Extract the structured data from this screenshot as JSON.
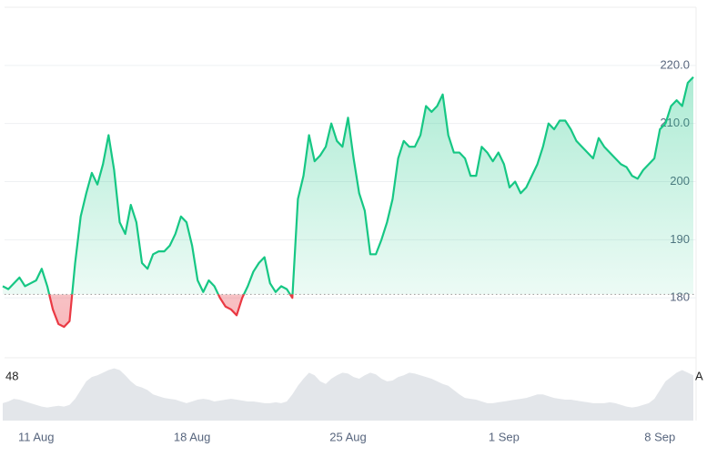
{
  "chart_data": [
    {
      "type": "line",
      "categories": [
        null,
        null,
        null,
        null,
        null,
        null,
        "11 Aug",
        null,
        null,
        null,
        null,
        null,
        null,
        null,
        null,
        null,
        null,
        null,
        null,
        null,
        null,
        null,
        null,
        null,
        null,
        null,
        null,
        null,
        null,
        null,
        null,
        null,
        null,
        null,
        "18 Aug",
        null,
        null,
        null,
        null,
        null,
        null,
        null,
        null,
        null,
        null,
        null,
        null,
        null,
        null,
        null,
        null,
        null,
        null,
        null,
        null,
        null,
        null,
        null,
        null,
        null,
        null,
        null,
        "25 Aug",
        null,
        null,
        null,
        null,
        null,
        null,
        null,
        null,
        null,
        null,
        null,
        null,
        null,
        null,
        null,
        null,
        null,
        null,
        null,
        null,
        null,
        null,
        null,
        null,
        null,
        null,
        null,
        "1 Sep",
        null,
        null,
        null,
        null,
        null,
        null,
        null,
        null,
        null,
        null,
        null,
        null,
        null,
        null,
        null,
        null,
        null,
        null,
        null,
        null,
        null,
        null,
        null,
        null,
        null,
        null,
        null,
        "8 Sep",
        null,
        null,
        null,
        null,
        null,
        null
      ],
      "values": [
        182,
        181.5,
        182.5,
        183.5,
        182,
        182.5,
        183,
        185,
        182,
        178,
        175.5,
        175,
        176,
        186,
        194,
        198,
        201.5,
        199.5,
        203,
        208,
        202,
        193,
        191,
        196,
        193,
        186,
        185,
        187.5,
        188,
        188,
        189,
        191,
        194,
        193,
        189,
        183,
        181,
        183,
        182,
        180,
        178.5,
        178,
        177,
        180,
        182,
        184.5,
        186,
        187,
        182.5,
        181,
        182,
        181.5,
        180,
        197,
        201,
        208,
        203.5,
        204.5,
        206,
        210,
        207,
        206,
        211,
        204,
        198,
        195,
        187.5,
        187.5,
        190,
        193,
        197,
        204,
        207,
        206,
        206,
        208,
        213,
        212,
        213,
        215,
        208,
        205,
        205,
        204,
        201,
        201,
        206,
        205,
        203.5,
        205,
        203,
        199,
        200,
        198,
        199,
        201,
        203,
        206,
        210,
        209,
        210.5,
        210.5,
        209,
        207,
        206,
        205,
        204,
        207.5,
        206,
        205,
        204,
        203,
        202.5,
        201,
        200.5,
        202,
        203,
        204,
        209,
        210,
        213,
        214,
        213,
        217,
        218
      ],
      "color": "#16c784",
      "negative_color": "#ea3943",
      "reference_line": 180.6,
      "ylim": [
        170,
        230
      ],
      "yticks": [
        180,
        190,
        200,
        {
          "value": 210,
          "label": "210.0"
        },
        {
          "value": 220,
          "label": "220.0"
        }
      ],
      "grid": true
    },
    {
      "type": "area",
      "values": [
        20,
        22,
        25,
        24,
        22,
        20,
        18,
        16,
        15,
        16,
        17,
        16,
        18,
        25,
        35,
        45,
        50,
        52,
        55,
        58,
        60,
        58,
        52,
        45,
        40,
        38,
        35,
        30,
        28,
        26,
        25,
        24,
        22,
        20,
        22,
        24,
        25,
        24,
        22,
        23,
        24,
        25,
        24,
        23,
        22,
        22,
        21,
        20,
        20,
        21,
        20,
        22,
        30,
        40,
        48,
        55,
        52,
        45,
        42,
        48,
        52,
        55,
        54,
        50,
        48,
        52,
        55,
        53,
        48,
        45,
        46,
        50,
        52,
        55,
        54,
        52,
        50,
        48,
        45,
        42,
        40,
        35,
        30,
        26,
        25,
        24,
        22,
        20,
        20,
        21,
        22,
        23,
        24,
        25,
        26,
        28,
        30,
        30,
        28,
        26,
        25,
        24,
        24,
        23,
        22,
        21,
        20,
        20,
        20,
        21,
        20,
        18,
        16,
        15,
        16,
        18,
        20,
        25,
        35,
        45,
        50,
        55,
        58,
        55,
        52
      ],
      "color": "#e3e6ea",
      "ylim": [
        0,
        70
      ],
      "annotations": [
        "48",
        "A"
      ]
    }
  ]
}
